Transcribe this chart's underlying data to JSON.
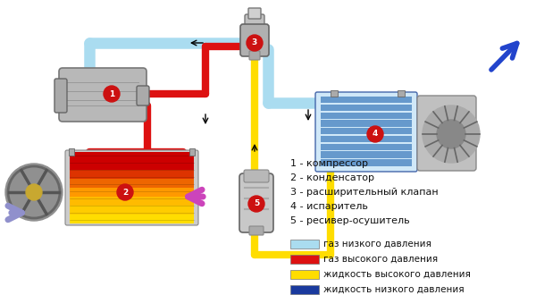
{
  "legend_items": [
    "1 - компрессор",
    "2 - конденсатор",
    "3 - расширительный клапан",
    "4 - испаритель",
    "5 - ресивер-осушитель"
  ],
  "color_legend": [
    {
      "label": "газ низкого давления",
      "color": "#aadcf0"
    },
    {
      "label": "газ высокого давления",
      "color": "#dd1111"
    },
    {
      "label": "жидкость высокого давления",
      "color": "#ffdd00"
    },
    {
      "label": "жидкость низкого давления",
      "color": "#1a3a9e"
    }
  ],
  "bg_color": "#ffffff",
  "text_color": "#111111",
  "RED": "#dd1111",
  "YELLOW": "#ffdd00",
  "BLUE": "#1a3a9e",
  "LBLUE": "#aadcf0",
  "circle_color": "#cc1111",
  "font_size_legend": 8.0,
  "font_size_color": 7.5
}
